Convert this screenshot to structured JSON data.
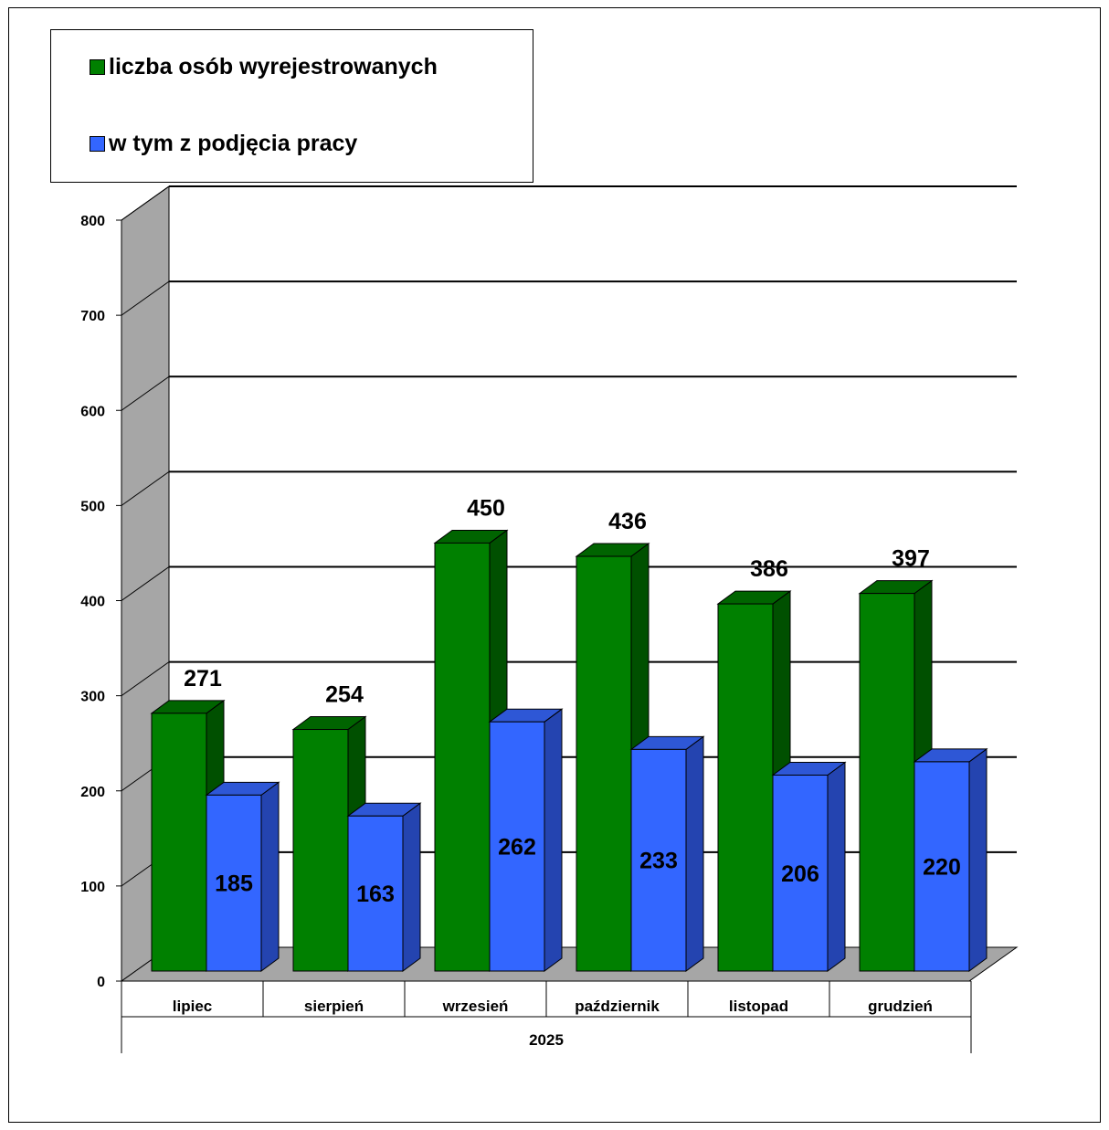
{
  "chart_data": {
    "type": "bar",
    "title": "",
    "xlabel": "",
    "ylabel": "",
    "group_label": "2025",
    "categories": [
      "lipiec",
      "sierpień",
      "wrzesień",
      "październik",
      "listopad",
      "grudzień"
    ],
    "series": [
      {
        "name": "liczba osób wyrejestrowanych",
        "values": [
          271,
          254,
          450,
          436,
          386,
          397
        ],
        "color": "#008000",
        "top_color": "#006400",
        "side_color": "#005000"
      },
      {
        "name": "w tym z podjęcia pracy",
        "values": [
          185,
          163,
          262,
          233,
          206,
          220
        ],
        "color": "#3366ff",
        "top_color": "#2e57d6",
        "side_color": "#2444b0"
      }
    ],
    "ylim": [
      0,
      800
    ],
    "yticks": [
      "0",
      "100",
      "200",
      "300",
      "400",
      "500",
      "600",
      "700",
      "800"
    ],
    "grid": true,
    "legend_position": "top-left",
    "three_d": true,
    "wall_color": "#a6a6a6",
    "floor_color": "#a6a6a6"
  }
}
